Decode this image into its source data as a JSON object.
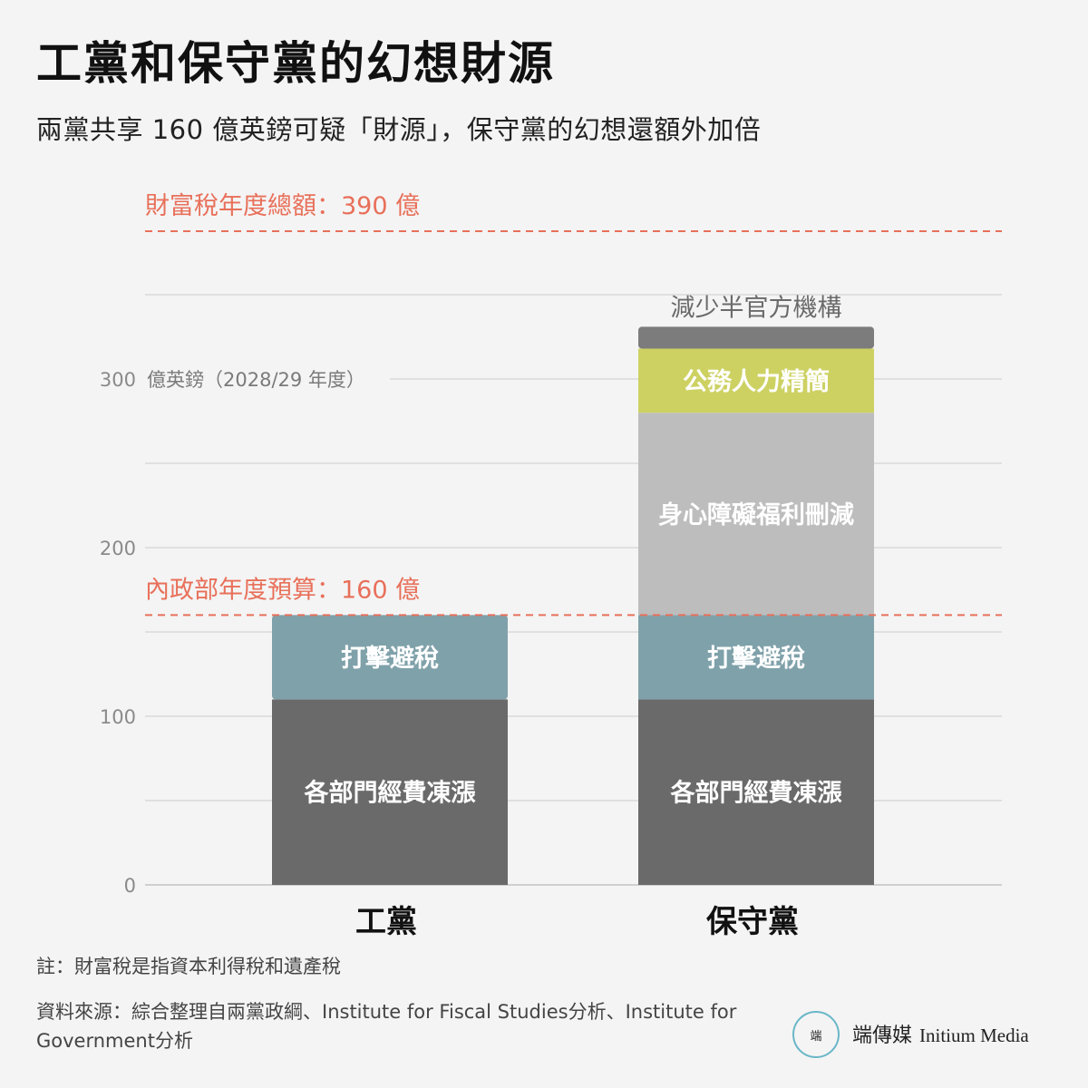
{
  "header": {
    "title": "工黨和保守黨的幻想財源",
    "subtitle": "兩黨共享 160 億英鎊可疑「財源」，保守黨的幻想還額外加倍"
  },
  "chart_data": {
    "type": "bar",
    "stacked": true,
    "categories": [
      "工黨",
      "保守黨"
    ],
    "series": [
      {
        "name": "各部門經費凍漲",
        "values": [
          110,
          110
        ],
        "color": "#6a6a6a"
      },
      {
        "name": "打擊避稅",
        "values": [
          50,
          50
        ],
        "color": "#7fa1aa"
      },
      {
        "name": "身心障礙福利刪減",
        "values": [
          0,
          120
        ],
        "color": "#bdbdbd"
      },
      {
        "name": "公務人力精簡",
        "values": [
          0,
          38
        ],
        "color": "#cdd162"
      },
      {
        "name": "減少半官方機構",
        "values": [
          0,
          13
        ],
        "color": "#7c7c7c"
      }
    ],
    "ylim": [
      0,
      390
    ],
    "yticks": [
      0,
      100,
      200,
      300
    ],
    "ylabel": "億英鎊（2028/29 年度）",
    "grid": true,
    "reference_lines": [
      {
        "label": "財富稅年度總額：390 億",
        "value": 390,
        "color": "#e8705a"
      },
      {
        "label": "內政部年度預算：160 億",
        "value": 160,
        "color": "#e8705a"
      }
    ]
  },
  "footer": {
    "note": "註：財富稅是指資本利得稅和遺產稅",
    "source": "資料來源：綜合整理自兩黨政綱、Institute for Fiscal Studies分析、Institute for Government分析",
    "brand_zh": "端傳媒",
    "brand_en": "Initium Media",
    "logo_text": "端"
  }
}
